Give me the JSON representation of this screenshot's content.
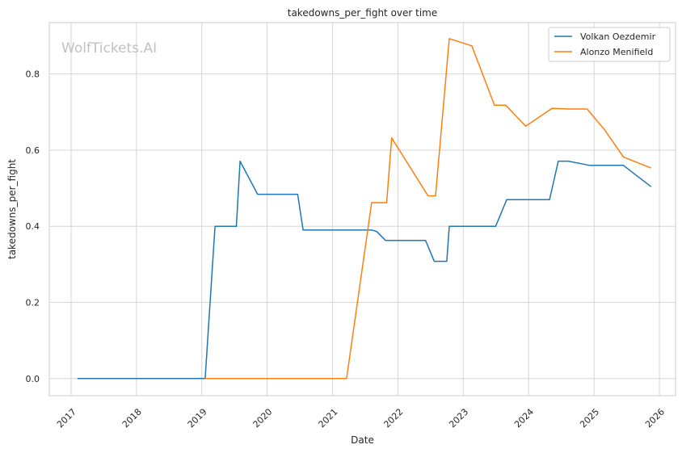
{
  "watermark": "WolfTickets.AI",
  "chart_data": {
    "type": "line",
    "title": "takedowns_per_fight over time",
    "xlabel": "Date",
    "ylabel": "takedowns_per_fight",
    "x_ticks": [
      "2017",
      "2018",
      "2019",
      "2020",
      "2021",
      "2022",
      "2023",
      "2024",
      "2025",
      "2026"
    ],
    "y_ticks": [
      "0.0",
      "0.2",
      "0.4",
      "0.6",
      "0.8"
    ],
    "xlim": [
      "2016-09-01",
      "2026-04-01"
    ],
    "ylim": [
      -0.045,
      0.935
    ],
    "grid": true,
    "legend": "top-right",
    "series": [
      {
        "name": "Volkan Oezdemir",
        "color": "#1f77b4",
        "points": [
          [
            "2017-02-05",
            0.0
          ],
          [
            "2019-01-20",
            0.0
          ],
          [
            "2019-03-16",
            0.4
          ],
          [
            "2019-07-13",
            0.4
          ],
          [
            "2019-08-03",
            0.571
          ],
          [
            "2019-11-09",
            0.484
          ],
          [
            "2020-06-20",
            0.484
          ],
          [
            "2020-07-20",
            0.39
          ],
          [
            "2021-08-10",
            0.39
          ],
          [
            "2021-09-05",
            0.386
          ],
          [
            "2021-10-23",
            0.363
          ],
          [
            "2022-06-04",
            0.363
          ],
          [
            "2022-07-23",
            0.308
          ],
          [
            "2022-10-01",
            0.308
          ],
          [
            "2022-10-15",
            0.4
          ],
          [
            "2023-07-01",
            0.4
          ],
          [
            "2023-09-01",
            0.47
          ],
          [
            "2024-04-27",
            0.47
          ],
          [
            "2024-06-15",
            0.571
          ],
          [
            "2024-08-10",
            0.571
          ],
          [
            "2024-12-07",
            0.56
          ],
          [
            "2025-06-14",
            0.56
          ],
          [
            "2025-11-15",
            0.504
          ]
        ]
      },
      {
        "name": "Alonzo Menifield",
        "color": "#ff7f0e",
        "points": [
          [
            "2019-01-20",
            0.0
          ],
          [
            "2021-03-20",
            0.0
          ],
          [
            "2021-08-07",
            0.462
          ],
          [
            "2021-10-30",
            0.462
          ],
          [
            "2021-11-27",
            0.632
          ],
          [
            "2022-06-18",
            0.48
          ],
          [
            "2022-07-30",
            0.48
          ],
          [
            "2022-10-15",
            0.893
          ],
          [
            "2023-02-18",
            0.874
          ],
          [
            "2023-06-24",
            0.718
          ],
          [
            "2023-08-26",
            0.718
          ],
          [
            "2023-12-16",
            0.663
          ],
          [
            "2024-05-11",
            0.71
          ],
          [
            "2024-08-10",
            0.708
          ],
          [
            "2024-11-23",
            0.708
          ],
          [
            "2025-03-01",
            0.653
          ],
          [
            "2025-06-14",
            0.582
          ],
          [
            "2025-11-15",
            0.553
          ]
        ]
      }
    ]
  }
}
